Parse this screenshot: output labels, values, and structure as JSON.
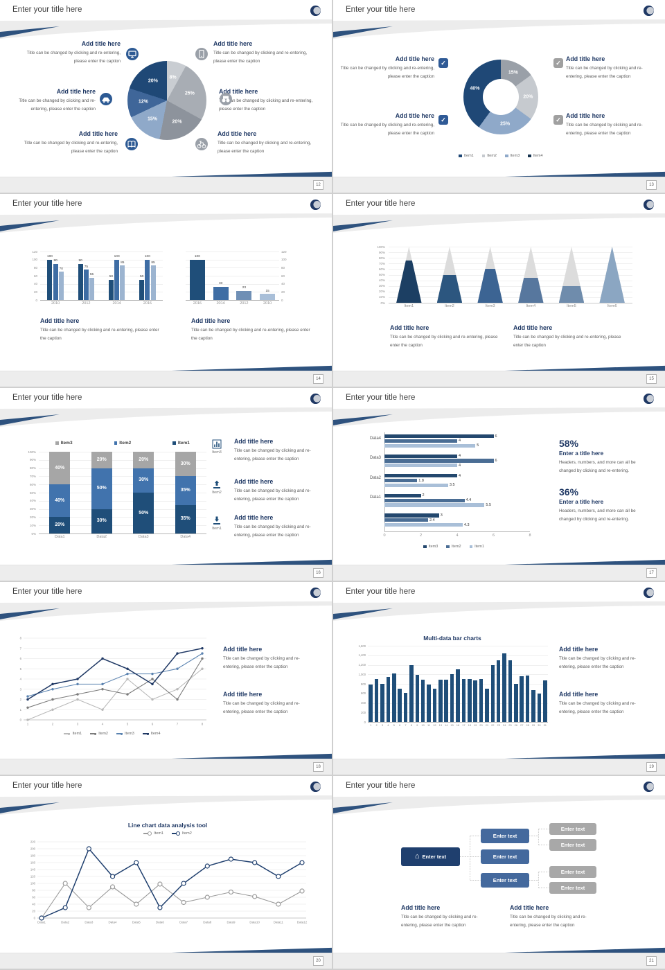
{
  "common": {
    "slide_title": "Enter your title here",
    "add_title": "Add title here",
    "caption": "Title can be changed by clicking and re-entering, please enter the caption",
    "enter_title": "Enter a title here",
    "stat_caption": "Headers, numbers, and more can all be changed by clicking and re-entering.",
    "enter_text": "Enter text"
  },
  "icons": {
    "home": "⌂",
    "check": "✓"
  },
  "palette": {
    "navy": "#1f3864",
    "blue_dark": "#1f4e79",
    "blue_mid": "#3e6da4",
    "blue_light": "#9cb4d0",
    "gray": "#a6a6a6",
    "chrome": "#ececec",
    "swoosh": "#2e527e"
  },
  "slides": [
    {
      "page": "12"
    },
    {
      "page": "13"
    },
    {
      "page": "14"
    },
    {
      "page": "15"
    },
    {
      "page": "16",
      "icon_items": [
        "Item3",
        "Item2",
        "Item1"
      ]
    },
    {
      "page": "17",
      "stat1": "58%",
      "stat2": "36%"
    },
    {
      "page": "18"
    },
    {
      "page": "19"
    },
    {
      "page": "20"
    },
    {
      "page": "21"
    }
  ],
  "chart_data": [
    {
      "type": "pie",
      "slices": [
        {
          "label": "8%",
          "value": 8,
          "color": "#c9cdd2"
        },
        {
          "label": "25%",
          "value": 25,
          "color": "#a8adb4"
        },
        {
          "label": "20%",
          "value": 20,
          "color": "#8d939c"
        },
        {
          "label": "15%",
          "value": 15,
          "color": "#8fa9c9"
        },
        {
          "label": "12%",
          "value": 12,
          "color": "#3f6699"
        },
        {
          "label": "20%",
          "value": 20,
          "color": "#1f4876"
        }
      ]
    },
    {
      "type": "donut",
      "slices": [
        {
          "label": "15%",
          "value": 15,
          "color": "#9aa0a8"
        },
        {
          "label": "20%",
          "value": 20,
          "color": "#c6cacf"
        },
        {
          "label": "25%",
          "value": 25,
          "color": "#8fa9c9"
        },
        {
          "label": "40%",
          "value": 40,
          "color": "#1f4876"
        }
      ],
      "legend": [
        {
          "name": "Item1",
          "color": "#1f4876"
        },
        {
          "name": "Item2",
          "color": "#c6cacf"
        },
        {
          "name": "Item3",
          "color": "#8fa9c9"
        },
        {
          "name": "Item4",
          "color": "#16334f"
        }
      ]
    },
    {
      "type": "bar-grouped",
      "categories": [
        "2010",
        "2012",
        "2014",
        "2016"
      ],
      "series": [
        {
          "color": "#1f4e79",
          "values": [
            100,
            90,
            50,
            50
          ]
        },
        {
          "color": "#3e6da4",
          "values": [
            90,
            75,
            100,
            100
          ]
        },
        {
          "color": "#9cb4d0",
          "values": [
            70,
            55,
            85,
            85
          ]
        }
      ],
      "ylim": [
        0,
        120
      ],
      "ystep": 20,
      "axis": "left",
      "value_labels": true
    },
    {
      "type": "bar",
      "categories": [
        "2016",
        "2014",
        "2012",
        "2010"
      ],
      "values": [
        100,
        33,
        23,
        15
      ],
      "colors": [
        "#1f4e79",
        "#3e6da4",
        "#6f8fb5",
        "#a9bfd8"
      ],
      "ylim": [
        0,
        120
      ],
      "ystep": 20,
      "axis": "right",
      "value_labels": true
    },
    {
      "type": "pyramid",
      "categories": [
        "Item1",
        "Item2",
        "Item3",
        "Item4",
        "Item5",
        "Item6"
      ],
      "values": [
        75,
        50,
        60,
        45,
        30,
        100
      ],
      "colors": [
        "#1c3f63",
        "#2c567f",
        "#3c6493",
        "#57779e",
        "#6f8cac",
        "#8ba6c2"
      ],
      "ylim": [
        0,
        100
      ],
      "ystep": 10
    },
    {
      "type": "bar-stacked",
      "categories": [
        "Data1",
        "Data2",
        "Data3",
        "Data4"
      ],
      "series": [
        {
          "name": "Item1",
          "color": "#1f4e79",
          "values": [
            20,
            30,
            50,
            35
          ]
        },
        {
          "name": "Item2",
          "color": "#4173ad",
          "values": [
            40,
            50,
            30,
            35
          ]
        },
        {
          "name": "Item3",
          "color": "#a6a6a6",
          "values": [
            40,
            20,
            20,
            30
          ]
        }
      ],
      "legend_order": [
        "Item3",
        "Item2",
        "Item1"
      ],
      "ystep": 10
    },
    {
      "type": "bar-horizontal",
      "series_names": [
        "Item3",
        "Item2",
        "Item1"
      ],
      "colors": [
        "#24486e",
        "#4a6d94",
        "#a9bfd8"
      ],
      "groups": [
        {
          "label": "Data4",
          "values": [
            6,
            4,
            5
          ]
        },
        {
          "label": "Data3",
          "values": [
            4,
            6,
            4
          ]
        },
        {
          "label": "Data2",
          "values": [
            4,
            1.8,
            3.5
          ]
        },
        {
          "label": "Data1",
          "values": [
            2,
            4.4,
            5.5
          ]
        },
        {
          "label": "",
          "values": [
            3,
            2.4,
            4.3
          ]
        }
      ],
      "xlim": [
        0,
        8
      ],
      "xticks": [
        0,
        2,
        4,
        6,
        8
      ]
    },
    {
      "type": "line",
      "x": [
        "1",
        "2",
        "3",
        "4",
        "5",
        "6",
        "7",
        "8"
      ],
      "ylim": [
        0,
        8
      ],
      "ystep": 1,
      "marker": "dot",
      "legend_pos": "bottom",
      "series": [
        {
          "name": "Item1",
          "color": "#b9b9b9",
          "values": [
            0,
            1,
            2,
            1,
            4,
            2,
            3,
            5
          ]
        },
        {
          "name": "Item2",
          "color": "#7b7b7b",
          "values": [
            1.2,
            2,
            2.5,
            3,
            2.5,
            4,
            2,
            6
          ]
        },
        {
          "name": "Item3",
          "color": "#5b83b0",
          "values": [
            2.3,
            3,
            3.5,
            3.5,
            4.5,
            4.5,
            5,
            6.5
          ]
        },
        {
          "name": "Item4",
          "color": "#1f3864",
          "values": [
            2,
            3.5,
            4,
            6,
            5,
            3.5,
            6.5,
            7
          ]
        }
      ]
    },
    {
      "type": "bar-multi",
      "title": "Multi-data bar charts",
      "color": "#1f4e79",
      "x": [
        "1",
        "2",
        "3",
        "4",
        "5",
        "6",
        "7",
        "8",
        "9",
        "10",
        "11",
        "12",
        "13",
        "14",
        "15",
        "16",
        "17",
        "18",
        "19",
        "20",
        "21",
        "22",
        "23",
        "24",
        "25",
        "26",
        "27",
        "28",
        "29",
        "30",
        "31"
      ],
      "values": [
        790,
        900,
        800,
        950,
        1020,
        700,
        610,
        1200,
        990,
        890,
        780,
        700,
        890,
        890,
        1000,
        1100,
        900,
        900,
        880,
        900,
        700,
        1200,
        1290,
        1440,
        1300,
        800,
        960,
        970,
        670,
        590,
        880
      ],
      "ylim": [
        0,
        1600
      ],
      "ystep": 200
    },
    {
      "type": "line",
      "title": "Line chart data analysis tool",
      "x": [
        "Data1",
        "Data2",
        "Data3",
        "Data4",
        "Data5",
        "Data6",
        "Data7",
        "Data8",
        "Data9",
        "Data10",
        "Data11",
        "Data12"
      ],
      "ylim": [
        0,
        220
      ],
      "ystep": 20,
      "marker": "ring",
      "legend_pos": "top",
      "series": [
        {
          "name": "Item1",
          "color": "#9a9a9a",
          "values": [
            0,
            100,
            30,
            90,
            40,
            98,
            45,
            60,
            75,
            62,
            40,
            78
          ]
        },
        {
          "name": "Item2",
          "color": "#1f3f6e",
          "values": [
            0,
            30,
            200,
            120,
            160,
            30,
            100,
            150,
            170,
            160,
            120,
            160
          ]
        }
      ]
    }
  ]
}
